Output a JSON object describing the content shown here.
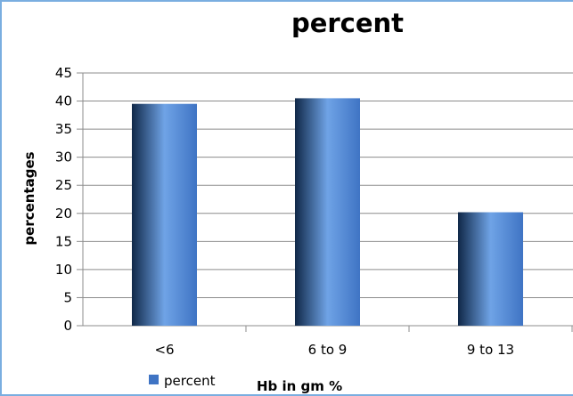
{
  "chart_data": {
    "type": "bar",
    "title": "percent",
    "xlabel": "Hb in gm %",
    "ylabel": "percentages",
    "categories": [
      "<6",
      "6 to 9",
      "9 to 13"
    ],
    "series": [
      {
        "name": "percent",
        "values": [
          39.5,
          40.5,
          20.2
        ]
      }
    ],
    "ylim": [
      0,
      45
    ],
    "yticks": [
      0,
      5,
      10,
      15,
      20,
      25,
      30,
      35,
      40,
      45
    ],
    "grid": true,
    "legend": "bottom-left",
    "colors": {
      "bar_light": "#6fa3e6",
      "bar_mid": "#3f74c4",
      "bar_dark": "#102848",
      "frame": "#7aaee0",
      "grid": "#8c8c8c"
    }
  }
}
